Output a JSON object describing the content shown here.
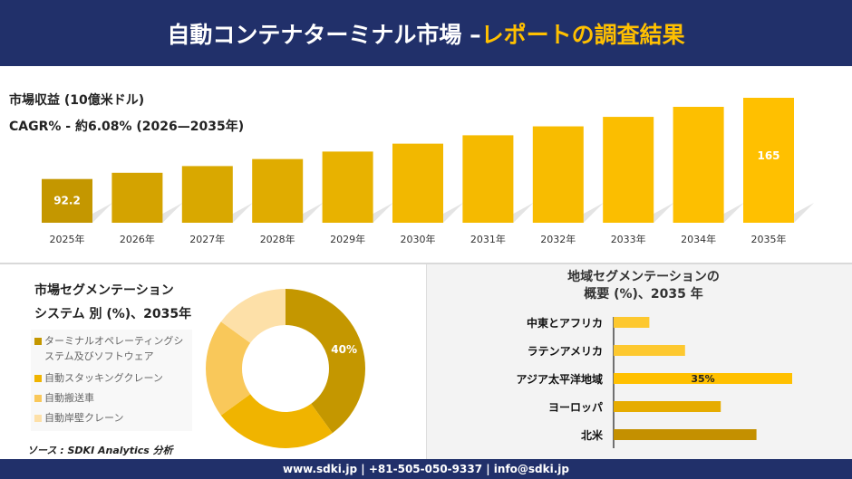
{
  "header": {
    "title_main": "自動コンテナターミナル市場 –",
    "title_accent": "レポートの調査結果"
  },
  "top": {
    "revenue_label": "市場収益 (10億米ドル)",
    "cagr_label": "CAGR% - 約6.08% (2026—2035年)"
  },
  "segment": {
    "title_line1": "市場セグメンテーション",
    "title_line2": "システム 別 (%)、2035年"
  },
  "source": "ソース : SDKI Analytics 分析",
  "region": {
    "title_line1": "地域セグメンテーションの",
    "title_line2": "概要 (%)、2035 年"
  },
  "footer": "www.sdki.jp | +81-505-050-9337 | info@sdki.jp",
  "chart_data": [
    {
      "type": "bar",
      "title": "市場収益 (10億米ドル)",
      "categories": [
        "2025年",
        "2026年",
        "2027年",
        "2028年",
        "2029年",
        "2030年",
        "2031年",
        "2032年",
        "2033年",
        "2034年",
        "2035年"
      ],
      "values": [
        92.2,
        97.8,
        103.8,
        110.1,
        116.8,
        123.9,
        131.4,
        139.4,
        147.9,
        156.9,
        165
      ],
      "data_labels": {
        "0": "92.2",
        "10": "165"
      },
      "ylim": [
        53,
        165
      ],
      "colors": [
        "#c49700",
        "#d4a300",
        "#d9a800",
        "#e0ac00",
        "#e8b200",
        "#f2b800",
        "#f5ba00",
        "#f8bc00",
        "#fbbe00",
        "#fdbf00",
        "#ffc000"
      ]
    },
    {
      "type": "pie",
      "title": "市場セグメンテーション システム 別 (%)、2035年",
      "labels": [
        "ターミナルオペレーティングシステム及びソフトウェア",
        "自動スタッキングクレーン",
        "自動搬送車",
        "自動岸壁クレーン"
      ],
      "values": [
        40,
        25,
        20,
        15
      ],
      "data_labels": {
        "0": "40%"
      },
      "colors": [
        "#c49700",
        "#f0b400",
        "#f9c85a",
        "#fde0a8"
      ]
    },
    {
      "type": "bar",
      "orientation": "horizontal",
      "title": "地域セグメンテーションの概要 (%)、2035 年",
      "categories": [
        "中東とアフリカ",
        "ラテンアメリカ",
        "アジア太平洋地域",
        "ヨーロッパ",
        "北米"
      ],
      "values": [
        7,
        14,
        35,
        21,
        28
      ],
      "data_labels": {
        "2": "35%"
      },
      "colors": [
        "#fdc82f",
        "#fdc82f",
        "#ffc000",
        "#e6ac00",
        "#c49000"
      ]
    }
  ]
}
